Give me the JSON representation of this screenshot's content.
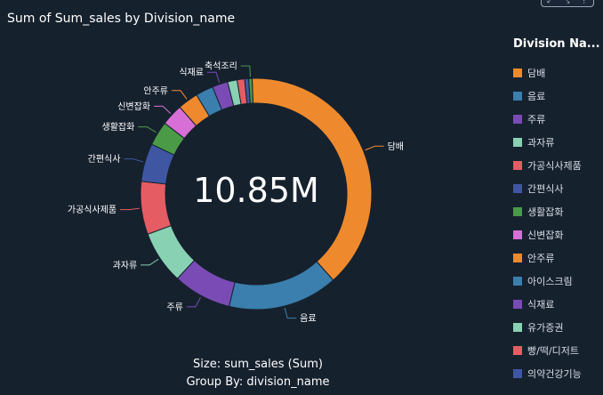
{
  "title": "Sum of Sum_sales by Division_name",
  "toolbar": {
    "icons": [
      "expand-icon",
      "collapse-icon",
      "more-icon"
    ],
    "glyphs": [
      "⤢",
      "⤡",
      "⋮"
    ]
  },
  "center_value": "10.85M",
  "footer": {
    "size_line": "Size: sum_sales (Sum)",
    "group_line": "Group By: division_name"
  },
  "legend": {
    "title": "Division Na...",
    "items": [
      {
        "label": "담배",
        "color": "#ee8a2d"
      },
      {
        "label": "음료",
        "color": "#3a7fad"
      },
      {
        "label": "주류",
        "color": "#7a4bb5"
      },
      {
        "label": "과자류",
        "color": "#88d1b2"
      },
      {
        "label": "가공식사제품",
        "color": "#e55d63"
      },
      {
        "label": "간편식사",
        "color": "#3f57a3"
      },
      {
        "label": "생활잡화",
        "color": "#4b9a47"
      },
      {
        "label": "신변잡화",
        "color": "#d76fd6"
      },
      {
        "label": "안주류",
        "color": "#ee8a2d"
      },
      {
        "label": "아이스크림",
        "color": "#3a7fad"
      },
      {
        "label": "식재료",
        "color": "#7a4bb5"
      },
      {
        "label": "유가증권",
        "color": "#88d1b2"
      },
      {
        "label": "빵/떡/디저트",
        "color": "#e55d63"
      },
      {
        "label": "의약건강기능",
        "color": "#3f57a3"
      }
    ]
  },
  "chart_data": {
    "type": "pie",
    "subtype": "donut",
    "title": "Sum of Sum_sales by Division_name",
    "total_label": "10.85M",
    "legend_placement": "right",
    "categories": [
      "담배",
      "음료",
      "주류",
      "과자류",
      "가공식사제품",
      "간편식사",
      "생활잡화",
      "신변잡화",
      "안주류",
      "아이스크림",
      "식재료",
      "유가증권",
      "빵/떡/디저트",
      "의약건강기능",
      "축석조리"
    ],
    "values": [
      41.0,
      16.2,
      8.6,
      7.8,
      7.8,
      5.6,
      3.6,
      3.2,
      3.0,
      2.6,
      2.3,
      1.4,
      1.1,
      0.6,
      0.5
    ],
    "colors": [
      "#ee8a2d",
      "#3a7fad",
      "#7a4bb5",
      "#88d1b2",
      "#e55d63",
      "#3f57a3",
      "#4b9a47",
      "#d76fd6",
      "#ee8a2d",
      "#3a7fad",
      "#7a4bb5",
      "#88d1b2",
      "#e55d63",
      "#3f57a3",
      "#4b9a47"
    ],
    "slice_labels": [
      "담배",
      "음료",
      "주류",
      "과자류",
      "가공식사제품",
      "간편식사",
      "생활잡화",
      "신변잡화",
      "안주류",
      "",
      "식재료",
      "",
      "",
      "",
      "축석조리"
    ]
  }
}
